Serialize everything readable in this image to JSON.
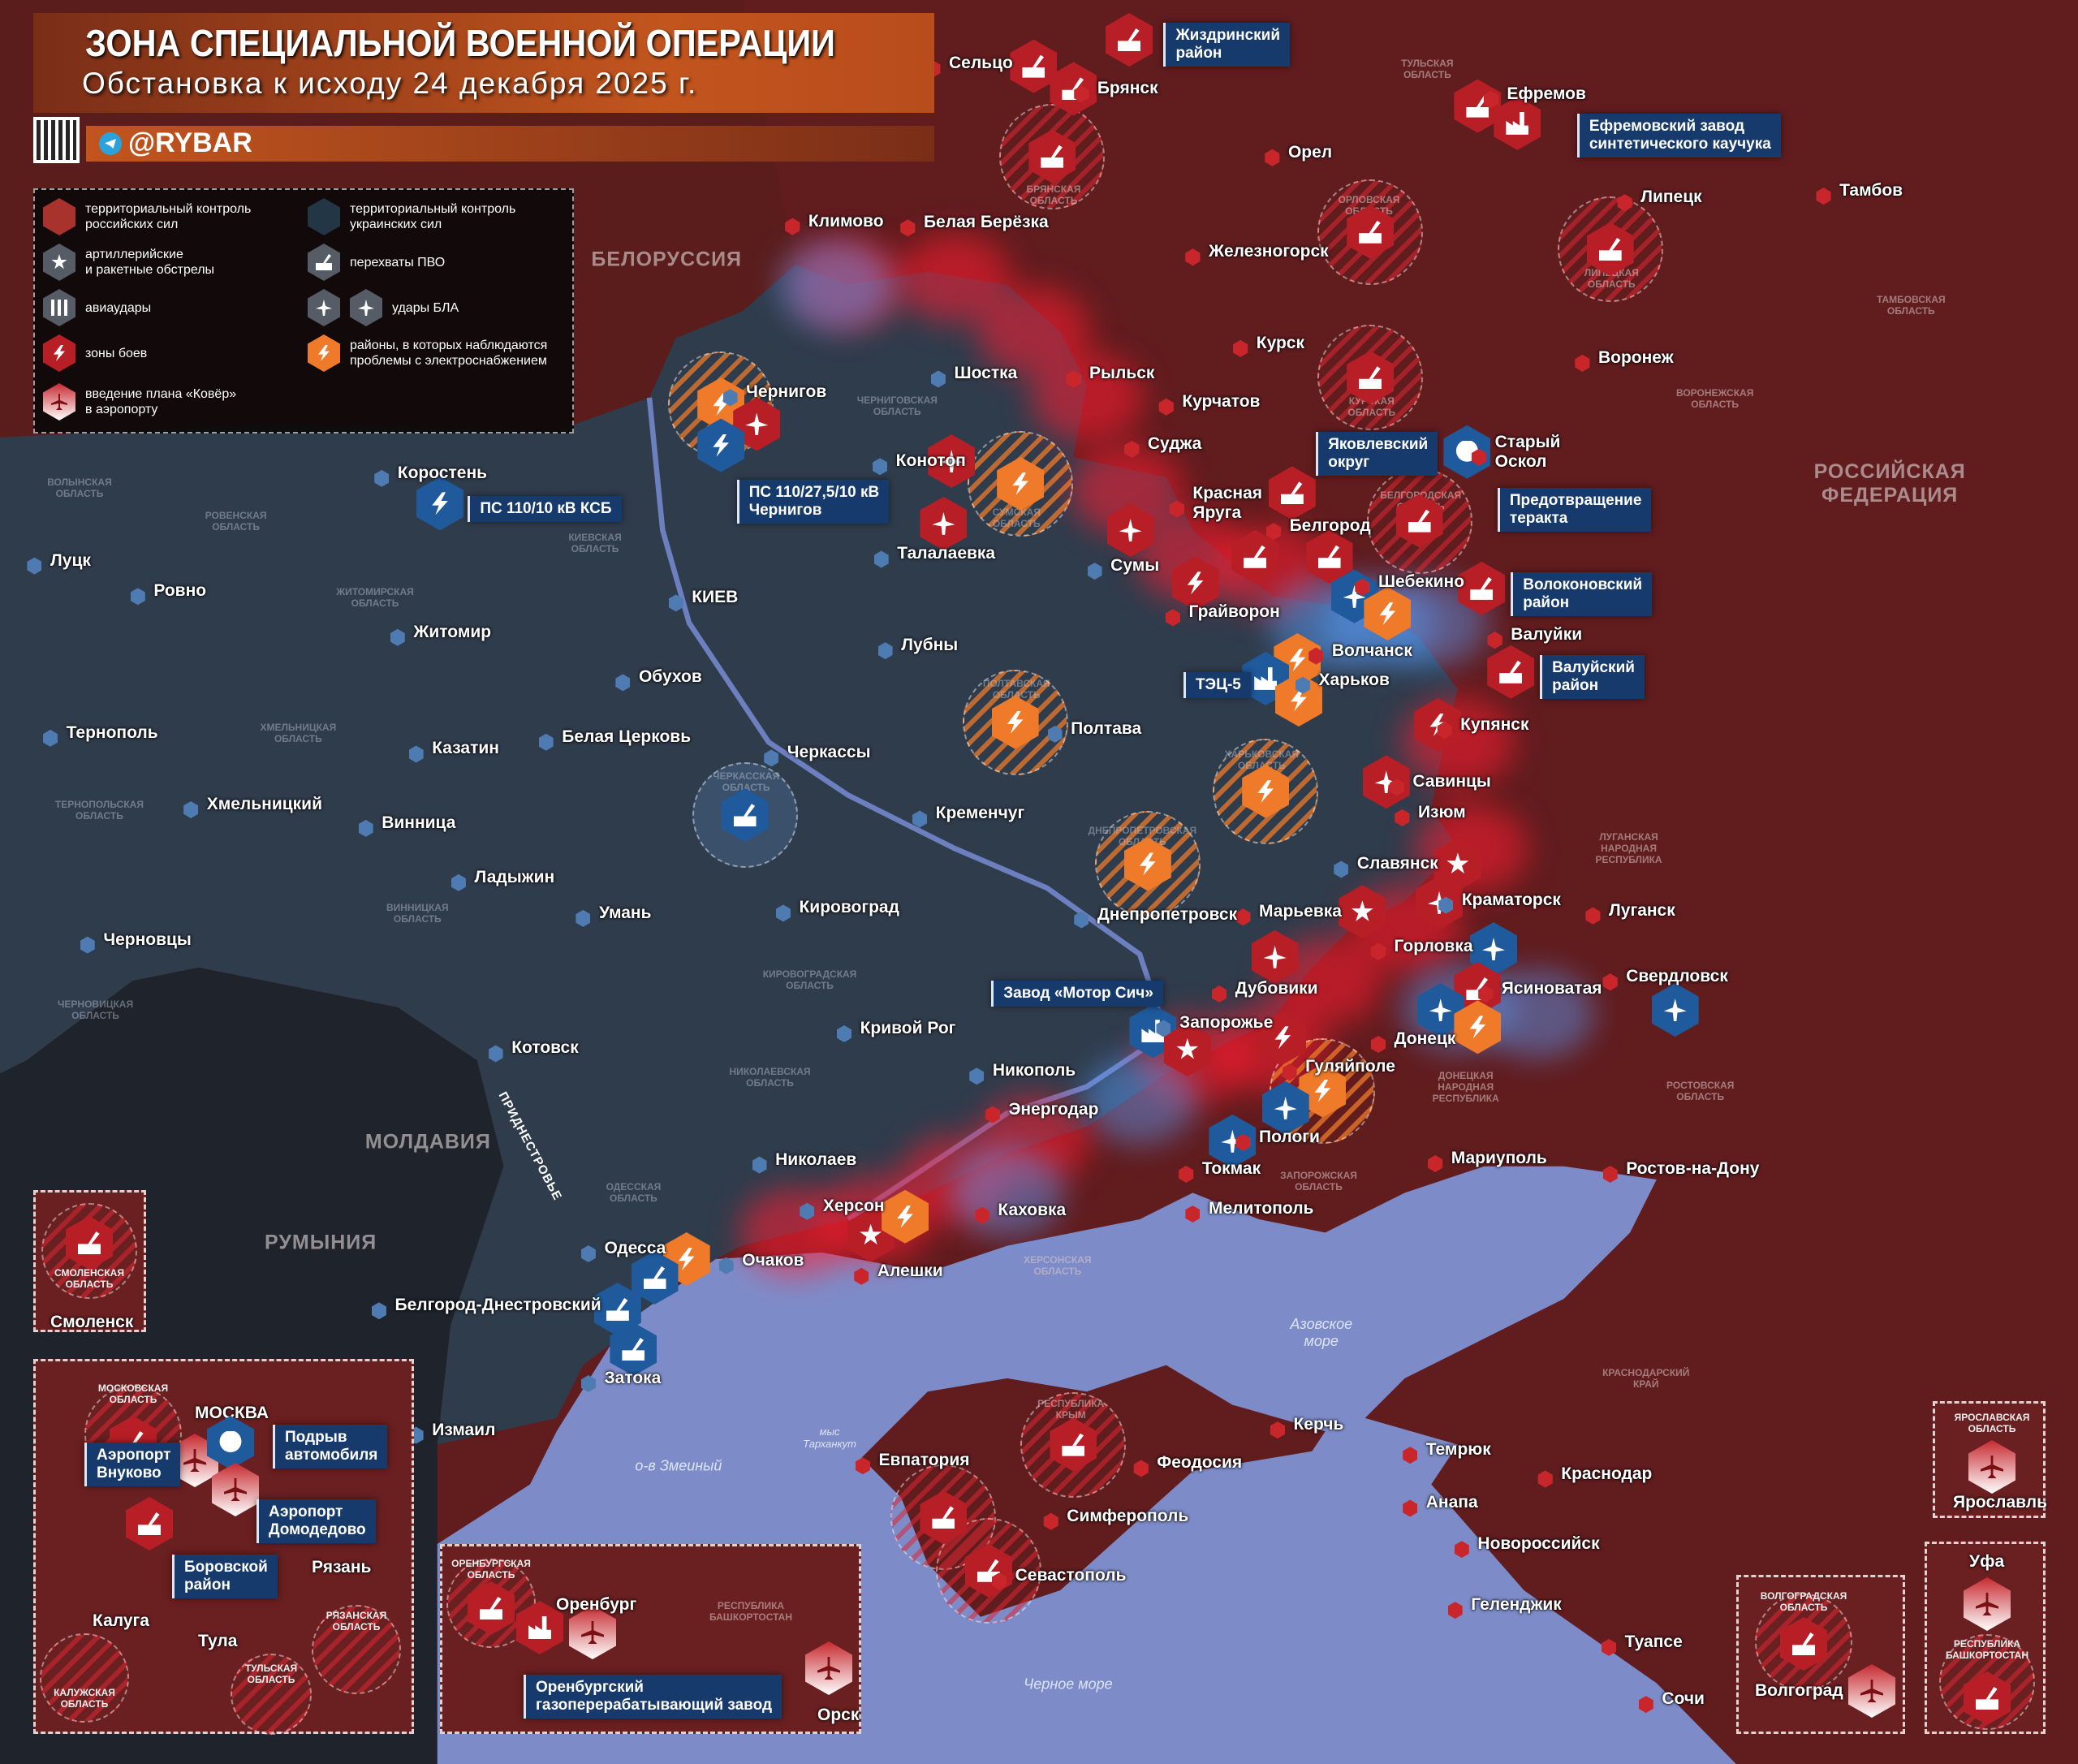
{
  "header": {
    "title": "ЗОНА СПЕЦИАЛЬНОЙ ВОЕННОЙ ОПЕРАЦИИ",
    "subtitle": "Обстановка к исходу 24 декабря 2025 г.",
    "handle": "@RYBAR"
  },
  "legend": {
    "items": [
      {
        "icon": "russian-control-hex-icon",
        "label": "территориальный контроль\nроссийских сил"
      },
      {
        "icon": "ukrainian-control-hex-icon",
        "label": "территориальный контроль\nукраинских сил"
      },
      {
        "icon": "artillery-icon",
        "label": "артиллерийские\nи ракетные обстрелы"
      },
      {
        "icon": "air-defense-icon",
        "label": "перехваты ПВО"
      },
      {
        "icon": "airstrike-icon",
        "label": "авиаудары"
      },
      {
        "icon": "drone-icon",
        "label": "удары БЛА"
      },
      {
        "icon": "lightning-icon",
        "label": "зоны боев"
      },
      {
        "icon": "power-outage-icon",
        "label": "районы, в которых наблюдаются\nпроблемы с электроснабжением"
      },
      {
        "icon": "airport-kover-icon",
        "label": "введение плана «Ковёр»\nв аэропорту"
      }
    ]
  },
  "colors": {
    "russia": "#6a1f20",
    "ukraine": "#2f3c4c",
    "sea": "#7d8cc9",
    "accent_orange": "#ee7a2a",
    "callout": "#173a6c"
  },
  "countries": [
    "БЕЛОРУССИЯ",
    "МОЛДАВИЯ",
    "РУМЫНИЯ",
    "РОССИЙСКАЯ\nФЕДЕРАЦИЯ",
    "ПРИДНЕСТРОВЬЕ"
  ],
  "seas": [
    "Азовское\nморе",
    "Черное море",
    "мыс\nТарханкут",
    "о-в Змеиный"
  ],
  "cities": [
    "Сельцо",
    "Брянск",
    "Ефремов",
    "Орел",
    "Климово",
    "Белая Берёзка",
    "Железногорск",
    "Липецк",
    "Тамбов",
    "Курск",
    "Воронеж",
    "Шостка",
    "Рыльск",
    "Курчатов",
    "Чернигов",
    "Коростень",
    "Конотоп",
    "Суджа",
    "Старый\nОскол",
    "Красная\nЯруга",
    "Белгород",
    "Талалаевка",
    "Сумы",
    "Шебекино",
    "Грайворон",
    "Валуйки",
    "Волчанск",
    "Харьков",
    "Купянск",
    "Полтава",
    "Лубны",
    "Луцк",
    "Ровно",
    "Житомир",
    "КИЕВ",
    "Обухов",
    "Белая Церковь",
    "Казатин",
    "Тернополь",
    "Хмельницкий",
    "Винница",
    "Черкассы",
    "Кременчуг",
    "Савинцы",
    "Изюм",
    "Славянск",
    "Краматорск",
    "Луганск",
    "Марьевка",
    "Днепропетровск",
    "Горловка",
    "Дубовики",
    "Ясиноватая",
    "Свердловск",
    "Ладыжин",
    "Умань",
    "Кировоград",
    "Черновцы",
    "Кривой Рог",
    "Запорожье",
    "Донецк",
    "Гуляйполе",
    "Котовск",
    "Никополь",
    "Энергодар",
    "Пологи",
    "Токмак",
    "Мариуполь",
    "Ростов-на-Дону",
    "Николаев",
    "Херсон",
    "Каховка",
    "Мелитополь",
    "Одесса",
    "Очаков",
    "Алешки",
    "Белгород-Днестровский",
    "Затока",
    "Измаил",
    "Евпатория",
    "Симферополь",
    "Феодосия",
    "Керчь",
    "Темрюк",
    "Анапа",
    "Краснодар",
    "Новороссийск",
    "Геленджик",
    "Туапсе",
    "Сочи",
    "Севастополь"
  ],
  "callouts": [
    "Жиздринский\nрайон",
    "Ефремовский завод\nсинтетического каучука",
    "ПС 110/10 кВ КСБ",
    "ПС 110/27,5/10 кВ\nЧернигов",
    "Яковлевский\nокруг",
    "Предотвращение\nтеракта",
    "Волоконовский\nрайон",
    "Валуйский\nрайон",
    "ТЭЦ-5",
    "Завод «Мотор Сич»"
  ],
  "oblasts": [
    "БРЯНСКАЯ\nОБЛАСТЬ",
    "ОРЛОВСКАЯ\nОБЛАСТЬ",
    "ТУЛЬСКАЯ\nОБЛАСТЬ",
    "ЛИПЕЦКАЯ\nОБЛАСТЬ",
    "ТАМБОВСКАЯ\nОБЛАСТЬ",
    "КУРСКАЯ\nОБЛАСТЬ",
    "ВОРОНЕЖСКАЯ\nОБЛАСТЬ",
    "БЕЛГОРОДСКАЯ\nОБЛАСТЬ",
    "СУМСКАЯ\nОБЛАСТЬ",
    "ЧЕРНИГОВСКАЯ\nОБЛАСТЬ",
    "КИЕВСКАЯ\nОБЛАСТЬ",
    "ЖИТОМИРСКАЯ\nОБЛАСТЬ",
    "РОВЕНСКАЯ\nОБЛАСТЬ",
    "ВОЛЫНСКАЯ\nОБЛАСТЬ",
    "ХМЕЛЬНИЦКАЯ\nОБЛАСТЬ",
    "ТЕРНОПОЛЬСКАЯ\nОБЛАСТЬ",
    "ВИННИЦКАЯ\nОБЛАСТЬ",
    "ЧЕРНОВИЦКАЯ\nОБЛАСТЬ",
    "ЧЕРКАССКАЯ\nОБЛАСТЬ",
    "ПОЛТАВСКАЯ\nОБЛАСТЬ",
    "ХАРЬКОВСКАЯ\nОБЛАСТЬ",
    "ДНЕПРОПЕТРОВСКАЯ\nОБЛАСТЬ",
    "КИРОВОГРАДСКАЯ\nОБЛАСТЬ",
    "НИКОЛАЕВСКАЯ\nОБЛАСТЬ",
    "ОДЕССКАЯ\nОБЛАСТЬ",
    "ХЕРСОНСКАЯ\nОБЛАСТЬ",
    "ЗАПОРОЖСКАЯ\nОБЛАСТЬ",
    "ДОНЕЦКАЯ\nНАРОДНАЯ\nРЕСПУБЛИКА",
    "ЛУГАНСКАЯ\nНАРОДНАЯ\nРЕСПУБЛИКА",
    "РОСТОВСКАЯ\nОБЛАСТЬ",
    "КРАСНОДАРСКИЙ\nКРАЙ",
    "РЕСПУБЛИКА\nКРЫМ"
  ],
  "insets": {
    "smolensk": {
      "oblast": "СМОЛЕНСКАЯ\nОБЛАСТЬ",
      "city": "Смоленск"
    },
    "moscow": {
      "city": "МОСКВА",
      "labels": [
        "МОСКОВСКАЯ\nОБЛАСТЬ",
        "КАЛУЖСКАЯ\nОБЛАСТЬ",
        "ТУЛЬСКАЯ\nОБЛАСТЬ",
        "РЯЗАНСКАЯ\nОБЛАСТЬ"
      ],
      "cities": [
        "Калуга",
        "Тула",
        "Рязань"
      ],
      "callouts": [
        "Аэропорт\nВнуково",
        "Подрыв\nавтомобиля",
        "Аэропорт\nДомодедово",
        "Боровской\nрайон"
      ]
    },
    "orenburg": {
      "oblast": "ОРЕНБУРГСКАЯ\nОБЛАСТЬ",
      "region": "РЕСПУБЛИКА\nБАШКОРТОСТАН",
      "cities": [
        "Оренбург",
        "Орск"
      ],
      "callout": "Оренбургский\nгазоперерабатывающий завод"
    },
    "volgograd": {
      "oblast": "ВОЛГОГРАДСКАЯ\nОБЛАСТЬ",
      "city": "Волгоград"
    },
    "yaroslavl": {
      "oblast": "ЯРОСЛАВСКАЯ\nОБЛАСТЬ",
      "city": "Ярославль"
    },
    "ufa": {
      "city": "Уфа",
      "region": "РЕСПУБЛИКА\nБАШКОРТОСТАН"
    }
  },
  "markers": [
    "air-defense-icon",
    "lightning-icon",
    "power-outage-icon",
    "drone-icon",
    "airport-kover-icon",
    "artillery-icon",
    "skull-icon",
    "factory-icon"
  ]
}
